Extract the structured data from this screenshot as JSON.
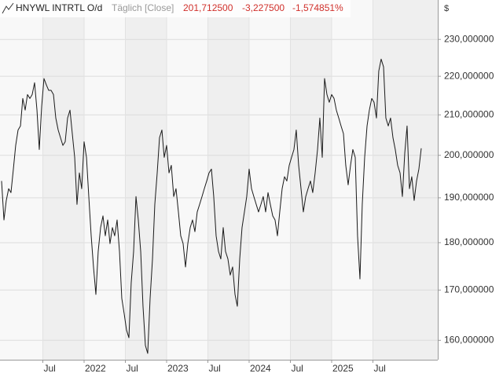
{
  "chart_data": {
    "type": "line",
    "title": "HNYWL INTRTL O/d",
    "subtitle": "Täglich [Close]",
    "annotations": [
      "201,712500",
      "-3,227500",
      "-1,574851%"
    ],
    "ylabel": "$",
    "color": "#1a1a1a",
    "log_scale": true,
    "grid": true,
    "xlim": [
      2020.981,
      2026.286
    ],
    "ylim": [
      156.3,
      241.2
    ],
    "xticks": [
      {
        "value": 2021.5,
        "label": "Jul"
      },
      2022,
      {
        "value": 2022.5,
        "label": "Jul"
      },
      2023,
      {
        "value": 2023.5,
        "label": "Jul"
      },
      2024,
      {
        "value": 2024.5,
        "label": "Jul"
      },
      2025,
      {
        "value": 2025.5,
        "label": "Jul"
      }
    ],
    "yticks": [
      {
        "value": 160,
        "label": "160,000000"
      },
      {
        "value": 170,
        "label": "170,000000"
      },
      {
        "value": 180,
        "label": "180,000000"
      },
      {
        "value": 190,
        "label": "190,000000"
      },
      {
        "value": 200,
        "label": "200,000000"
      },
      {
        "value": 210,
        "label": "210,000000"
      },
      {
        "value": 220,
        "label": "220,000000"
      },
      {
        "value": 230,
        "label": "230,000000"
      }
    ],
    "x": [
      2021.0,
      2021.029,
      2021.057,
      2021.086,
      2021.114,
      2021.143,
      2021.171,
      2021.2,
      2021.229,
      2021.257,
      2021.286,
      2021.314,
      2021.343,
      2021.371,
      2021.4,
      2021.429,
      2021.457,
      2021.486,
      2021.514,
      2021.543,
      2021.571,
      2021.6,
      2021.629,
      2021.657,
      2021.686,
      2021.714,
      2021.743,
      2021.771,
      2021.8,
      2021.829,
      2021.857,
      2021.886,
      2021.914,
      2021.943,
      2021.971,
      2022.0,
      2022.029,
      2022.057,
      2022.086,
      2022.114,
      2022.143,
      2022.171,
      2022.2,
      2022.229,
      2022.257,
      2022.286,
      2022.314,
      2022.343,
      2022.371,
      2022.4,
      2022.429,
      2022.457,
      2022.486,
      2022.514,
      2022.543,
      2022.571,
      2022.6,
      2022.629,
      2022.657,
      2022.686,
      2022.714,
      2022.743,
      2022.771,
      2022.8,
      2022.829,
      2022.857,
      2022.886,
      2022.914,
      2022.943,
      2022.971,
      2023.0,
      2023.029,
      2023.057,
      2023.086,
      2023.114,
      2023.143,
      2023.171,
      2023.2,
      2023.229,
      2023.257,
      2023.286,
      2023.314,
      2023.343,
      2023.371,
      2023.4,
      2023.429,
      2023.457,
      2023.486,
      2023.514,
      2023.543,
      2023.571,
      2023.6,
      2023.629,
      2023.657,
      2023.686,
      2023.714,
      2023.743,
      2023.771,
      2023.8,
      2023.829,
      2023.857,
      2023.886,
      2023.914,
      2023.943,
      2023.971,
      2024.0,
      2024.029,
      2024.057,
      2024.086,
      2024.114,
      2024.143,
      2024.171,
      2024.2,
      2024.229,
      2024.257,
      2024.286,
      2024.314,
      2024.343,
      2024.371,
      2024.4,
      2024.429,
      2024.457,
      2024.486,
      2024.514,
      2024.543,
      2024.571,
      2024.6,
      2024.629,
      2024.657,
      2024.686,
      2024.714,
      2024.743,
      2024.771,
      2024.8,
      2024.829,
      2024.857,
      2024.886,
      2024.914,
      2024.943,
      2024.971,
      2025.0,
      2025.029,
      2025.057,
      2025.086,
      2025.114,
      2025.143,
      2025.171,
      2025.2,
      2025.229,
      2025.257,
      2025.286,
      2025.314,
      2025.343,
      2025.371,
      2025.4,
      2025.429,
      2025.457,
      2025.486,
      2025.514,
      2025.543,
      2025.571,
      2025.6,
      2025.629,
      2025.657,
      2025.686,
      2025.714,
      2025.743,
      2025.771,
      2025.8,
      2025.829,
      2025.857,
      2025.886,
      2025.914,
      2025.943,
      2025.971,
      2026.0,
      2026.029,
      2026.057,
      2026.086
    ],
    "values": [
      193.9,
      185.0,
      189.4,
      192.1,
      191.2,
      196.7,
      202.4,
      206.2,
      207.2,
      214.2,
      211.2,
      215.2,
      214.2,
      215.2,
      218.3,
      211.2,
      201.4,
      212.2,
      219.4,
      217.7,
      216.3,
      216.3,
      215.2,
      209.2,
      206.2,
      204.3,
      202.4,
      203.3,
      209.2,
      211.2,
      205.3,
      199.5,
      188.5,
      195.8,
      192.1,
      203.3,
      199.5,
      190.3,
      181.5,
      174.8,
      169.1,
      178.1,
      183.3,
      185.9,
      181.5,
      185.0,
      179.8,
      183.3,
      181.5,
      185.0,
      178.1,
      168.3,
      165.2,
      162.0,
      160.5,
      171.5,
      178.1,
      190.3,
      185.0,
      178.1,
      166.7,
      159.0,
      157.5,
      168.3,
      176.5,
      188.5,
      195.8,
      204.3,
      206.2,
      199.5,
      202.4,
      195.8,
      197.6,
      190.3,
      192.1,
      186.8,
      181.5,
      179.8,
      174.8,
      179.8,
      183.3,
      185.0,
      182.4,
      186.8,
      188.5,
      190.3,
      192.1,
      193.9,
      195.8,
      196.7,
      190.3,
      181.5,
      178.1,
      176.5,
      183.3,
      178.1,
      176.5,
      173.1,
      174.8,
      169.1,
      166.7,
      176.5,
      183.3,
      186.8,
      190.3,
      196.7,
      192.1,
      190.3,
      188.5,
      186.8,
      188.5,
      190.3,
      186.8,
      191.2,
      188.5,
      185.9,
      185.0,
      181.5,
      186.8,
      192.1,
      194.9,
      193.9,
      197.6,
      199.5,
      201.4,
      206.2,
      197.6,
      192.1,
      186.8,
      190.3,
      192.1,
      193.9,
      191.2,
      195.8,
      201.4,
      209.2,
      199.5,
      219.4,
      215.2,
      213.2,
      215.2,
      214.2,
      211.2,
      209.2,
      207.2,
      205.3,
      197.6,
      193.0,
      197.6,
      201.4,
      199.5,
      181.5,
      172.3,
      188.5,
      199.5,
      207.2,
      211.2,
      214.2,
      213.2,
      209.2,
      221.4,
      224.6,
      222.5,
      209.2,
      207.2,
      209.2,
      204.3,
      201.4,
      197.6,
      195.8,
      190.3,
      200.5,
      207.2,
      192.1,
      194.9,
      189.4,
      193.9,
      196.7,
      201.7
    ]
  }
}
